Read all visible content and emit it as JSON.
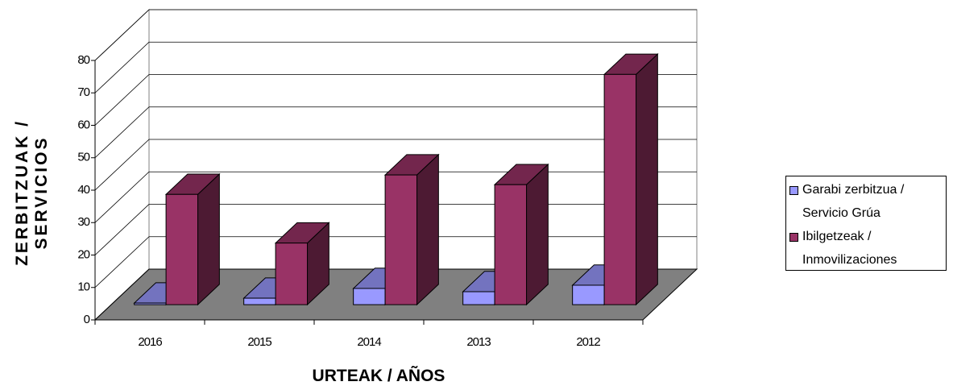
{
  "chart_data": {
    "type": "bar3d",
    "ylabel": "ZERBITZUAK / SERVICIOS",
    "xlabel": "URTEAK / AÑOS",
    "categories": [
      "2016",
      "2015",
      "2014",
      "2013",
      "2012"
    ],
    "series": [
      {
        "name": "Garabi zerbitzua / Servicio Grúa",
        "color": "#9999ff",
        "values": [
          0.5,
          2,
          5,
          4,
          6
        ]
      },
      {
        "name": "Ibilgetzeak / Inmovilizaciones",
        "color": "#993366",
        "values": [
          34,
          19,
          40,
          37,
          71
        ]
      }
    ],
    "ylim": [
      0,
      80
    ],
    "yticks": [
      0,
      10,
      20,
      30,
      40,
      50,
      60,
      70,
      80
    ],
    "grid": true,
    "legend": "right"
  }
}
